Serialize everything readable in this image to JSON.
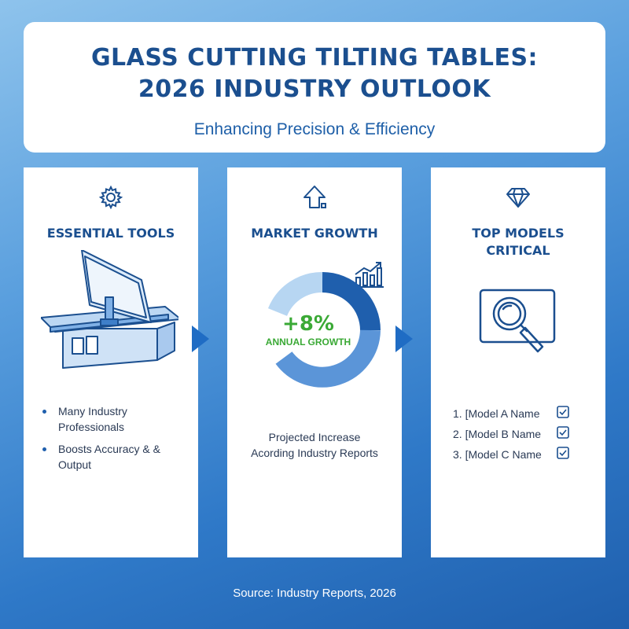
{
  "header": {
    "title_line1": "GLASS CUTTING TILTING TABLES:",
    "title_line2": "2026 INDUSTRY OUTLOOK",
    "subtitle": "Enhancing Precision & Efficiency"
  },
  "panels": [
    {
      "icon": "gear-icon",
      "title": "ESSENTIAL TOOLS",
      "bullets": [
        "Many Industry Professionals",
        "Boosts Accuracy & & Output"
      ]
    },
    {
      "icon": "arrow-up-icon",
      "title": "MARKET GROWTH",
      "growth_value": "+8%",
      "growth_label": "ANNUAL GROWTH",
      "caption_line1": "Projected Increase",
      "caption_line2": "Acording Industry Reports"
    },
    {
      "icon": "diamond-icon",
      "title_line1": "TOP MODELS",
      "title_line2": "CRITICAL",
      "models": [
        "1. [Model A Name",
        "2. [Model B Name",
        "3. [Model C Name"
      ]
    }
  ],
  "footer": "Source: Industry Reports, 2026",
  "colors": {
    "primary": "#1b4f8f",
    "accent_green": "#3aa935",
    "donut_dark": "#1f5fad",
    "donut_mid": "#5b95d8",
    "donut_light": "#b7d6f2"
  }
}
